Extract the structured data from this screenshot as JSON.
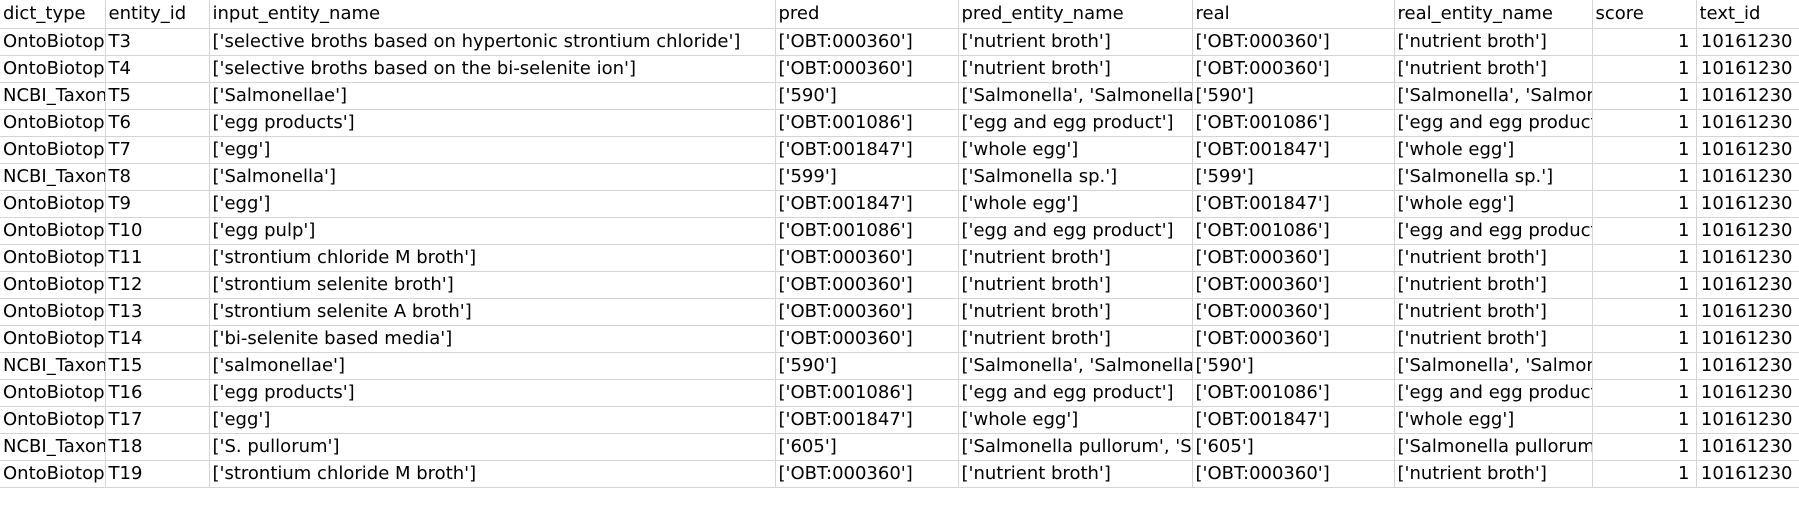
{
  "sheet": {
    "columns": [
      "dict_type",
      "entity_id",
      "input_entity_name",
      "pred",
      "pred_entity_name",
      "real",
      "real_entity_name",
      "score",
      "text_id"
    ],
    "rows": [
      [
        "OntoBiotope",
        "T3",
        "['selective broths based on hypertonic strontium chloride']",
        "['OBT:000360']",
        "['nutrient broth']",
        "['OBT:000360']",
        "['nutrient broth']",
        "1",
        "10161230"
      ],
      [
        "OntoBiotope",
        "T4",
        "['selective broths based on the bi-selenite ion']",
        "['OBT:000360']",
        "['nutrient broth']",
        "['OBT:000360']",
        "['nutrient broth']",
        "1",
        "10161230"
      ],
      [
        "NCBI_Taxonomy",
        "T5",
        "['Salmonellae']",
        "['590']",
        "['Salmonella', 'Salmonella']",
        "['590']",
        "['Salmonella', 'Salmonella']",
        "1",
        "10161230"
      ],
      [
        "OntoBiotope",
        "T6",
        "['egg products']",
        "['OBT:001086']",
        "['egg and egg product']",
        "['OBT:001086']",
        "['egg and egg product']",
        "1",
        "10161230"
      ],
      [
        "OntoBiotope",
        "T7",
        "['egg']",
        "['OBT:001847']",
        "['whole egg']",
        "['OBT:001847']",
        "['whole egg']",
        "1",
        "10161230"
      ],
      [
        "NCBI_Taxonomy",
        "T8",
        "['Salmonella']",
        "['599']",
        "['Salmonella sp.']",
        "['599']",
        "['Salmonella sp.']",
        "1",
        "10161230"
      ],
      [
        "OntoBiotope",
        "T9",
        "['egg']",
        "['OBT:001847']",
        "['whole egg']",
        "['OBT:001847']",
        "['whole egg']",
        "1",
        "10161230"
      ],
      [
        "OntoBiotope",
        "T10",
        "['egg pulp']",
        "['OBT:001086']",
        "['egg and egg product']",
        "['OBT:001086']",
        "['egg and egg product']",
        "1",
        "10161230"
      ],
      [
        "OntoBiotope",
        "T11",
        "['strontium chloride M broth']",
        "['OBT:000360']",
        "['nutrient broth']",
        "['OBT:000360']",
        "['nutrient broth']",
        "1",
        "10161230"
      ],
      [
        "OntoBiotope",
        "T12",
        "['strontium selenite broth']",
        "['OBT:000360']",
        "['nutrient broth']",
        "['OBT:000360']",
        "['nutrient broth']",
        "1",
        "10161230"
      ],
      [
        "OntoBiotope",
        "T13",
        "['strontium selenite A broth']",
        "['OBT:000360']",
        "['nutrient broth']",
        "['OBT:000360']",
        "['nutrient broth']",
        "1",
        "10161230"
      ],
      [
        "OntoBiotope",
        "T14",
        "['bi-selenite based media']",
        "['OBT:000360']",
        "['nutrient broth']",
        "['OBT:000360']",
        "['nutrient broth']",
        "1",
        "10161230"
      ],
      [
        "NCBI_Taxonomy",
        "T15",
        "['salmonellae']",
        "['590']",
        "['Salmonella', 'Salmonella']",
        "['590']",
        "['Salmonella', 'Salmonella']",
        "1",
        "10161230"
      ],
      [
        "OntoBiotope",
        "T16",
        "['egg products']",
        "['OBT:001086']",
        "['egg and egg product']",
        "['OBT:001086']",
        "['egg and egg product']",
        "1",
        "10161230"
      ],
      [
        "OntoBiotope",
        "T17",
        "['egg']",
        "['OBT:001847']",
        "['whole egg']",
        "['OBT:001847']",
        "['whole egg']",
        "1",
        "10161230"
      ],
      [
        "NCBI_Taxonomy",
        "T18",
        "['S. pullorum']",
        "['605']",
        "['Salmonella pullorum', 'Salmonella']",
        "['605']",
        "['Salmonella pullorum', 'Salmonella']",
        "1",
        "10161230"
      ],
      [
        "OntoBiotope",
        "T19",
        "['strontium chloride M broth']",
        "['OBT:000360']",
        "['nutrient broth']",
        "['OBT:000360']",
        "['nutrient broth']",
        "1",
        "10161230"
      ]
    ]
  },
  "colors": {
    "background": "#ffffff",
    "gridline": "#d4d4d4",
    "text": "#000000"
  }
}
